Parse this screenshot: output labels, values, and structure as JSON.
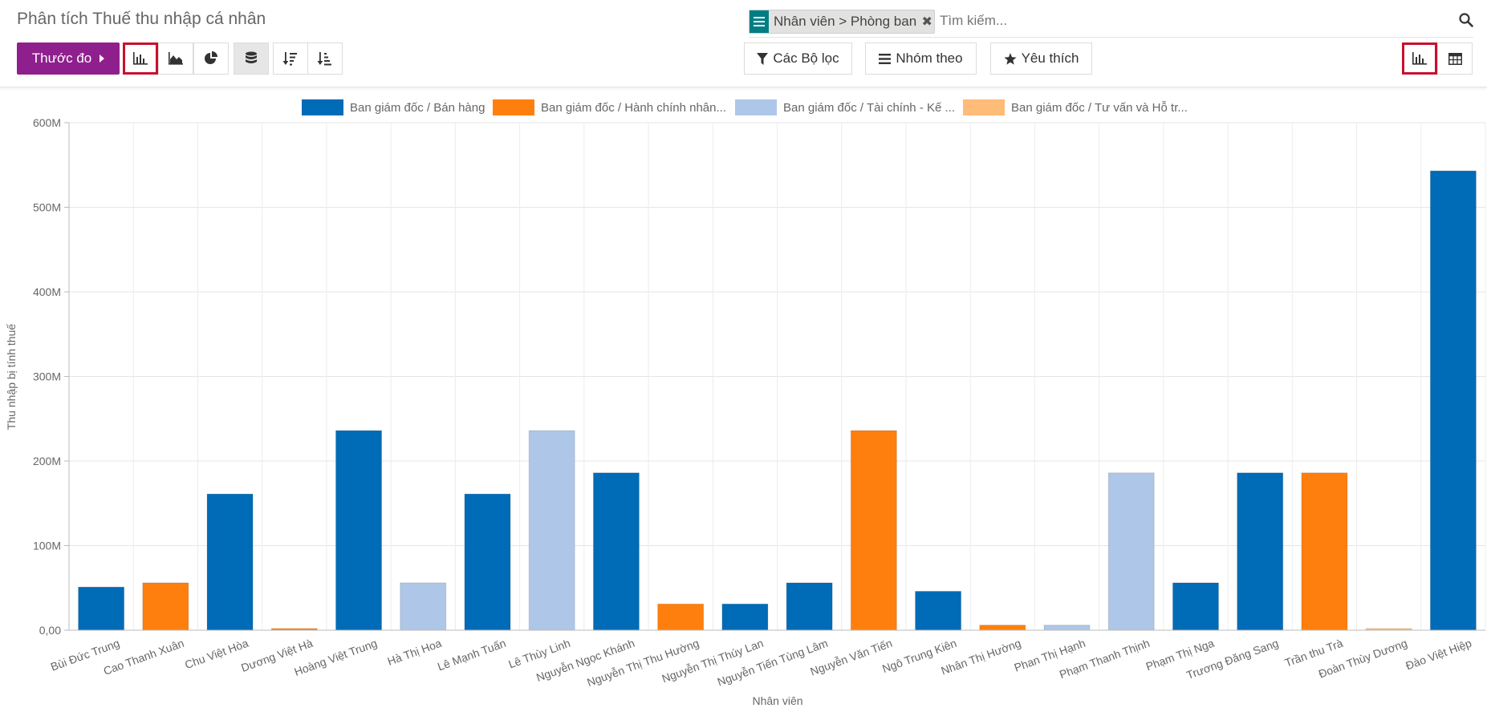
{
  "page": {
    "title": "Phân tích Thuế thu nhập cá nhân"
  },
  "search": {
    "facet_label": "Nhân viên  > Phòng ban",
    "placeholder": "Tìm kiếm..."
  },
  "toolbar": {
    "measures_label": "Thước đo",
    "filters_label": "Các Bộ lọc",
    "group_by_label": "Nhóm theo",
    "favorites_label": "Yêu thích"
  },
  "colors": {
    "brand": "#8f1f8d",
    "highlight": "#c8102e"
  },
  "chart_data": {
    "type": "bar",
    "xlabel": "Nhân viên",
    "ylabel": "Thu nhập bị tính thuế",
    "ylim": [
      0,
      600000000
    ],
    "yticks": [
      "0,00",
      "100M",
      "200M",
      "300M",
      "400M",
      "500M",
      "600M"
    ],
    "grid": true,
    "legend_position": "top",
    "series": [
      {
        "name": "Ban giám đốc / Bán hàng",
        "color": "#006bb6"
      },
      {
        "name": "Ban giám đốc / Hành chính nhân...",
        "color": "#ff7f0e"
      },
      {
        "name": "Ban giám đốc / Tài chính - Kế ...",
        "color": "#aec7e8"
      },
      {
        "name": "Ban giám đốc / Tư vấn và Hỗ tr...",
        "color": "#ffbb78"
      }
    ],
    "categories": [
      "Bùi Đức Trung",
      "Cao Thanh Xuân",
      "Chu Việt Hòa",
      "Dương Việt Hà",
      "Hoàng Việt Trung",
      "Hà Thị Hoa",
      "Lê Mạnh Tuấn",
      "Lê Thùy Linh",
      "Nguyễn Ngọc Khánh",
      "Nguyễn Thị Thu Hường",
      "Nguyễn Thị Thúy Lan",
      "Nguyễn Tiến Tùng Lâm",
      "Nguyễn Văn Tiến",
      "Ngô Trung Kiên",
      "Nhân Thị Hường",
      "Phan Thị Hạnh",
      "Phạm Thanh Thịnh",
      "Phạm Thị Nga",
      "Trương Đăng Sang",
      "Trần thu Trà",
      "Đoàn Thùy Dương",
      "Đào Việt Hiệp"
    ],
    "bars": [
      {
        "category": "Bùi Đức Trung",
        "series": 0,
        "value": 51000000
      },
      {
        "category": "Cao Thanh Xuân",
        "series": 1,
        "value": 56000000
      },
      {
        "category": "Chu Việt Hòa",
        "series": 0,
        "value": 161000000
      },
      {
        "category": "Dương Việt Hà",
        "series": 1,
        "value": 2000000
      },
      {
        "category": "Hoàng Việt Trung",
        "series": 0,
        "value": 236000000
      },
      {
        "category": "Hà Thị Hoa",
        "series": 2,
        "value": 56000000
      },
      {
        "category": "Lê Mạnh Tuấn",
        "series": 0,
        "value": 161000000
      },
      {
        "category": "Lê Thùy Linh",
        "series": 2,
        "value": 236000000
      },
      {
        "category": "Nguyễn Ngọc Khánh",
        "series": 0,
        "value": 186000000
      },
      {
        "category": "Nguyễn Thị Thu Hường",
        "series": 1,
        "value": 31000000
      },
      {
        "category": "Nguyễn Thị Thúy Lan",
        "series": 0,
        "value": 31000000
      },
      {
        "category": "Nguyễn Tiến Tùng Lâm",
        "series": 0,
        "value": 56000000
      },
      {
        "category": "Nguyễn Văn Tiến",
        "series": 1,
        "value": 236000000
      },
      {
        "category": "Ngô Trung Kiên",
        "series": 0,
        "value": 46000000
      },
      {
        "category": "Nhân Thị Hường",
        "series": 1,
        "value": 6000000
      },
      {
        "category": "Phan Thị Hạnh",
        "series": 2,
        "value": 6000000
      },
      {
        "category": "Phạm Thanh Thịnh",
        "series": 2,
        "value": 186000000
      },
      {
        "category": "Phạm Thị Nga",
        "series": 0,
        "value": 56000000
      },
      {
        "category": "Trương Đăng Sang",
        "series": 0,
        "value": 186000000
      },
      {
        "category": "Trần thu Trà",
        "series": 1,
        "value": 186000000
      },
      {
        "category": "Đoàn Thùy Dương",
        "series": 3,
        "value": 2000000
      },
      {
        "category": "Đào Việt Hiệp",
        "series": 0,
        "value": 543000000
      }
    ]
  }
}
